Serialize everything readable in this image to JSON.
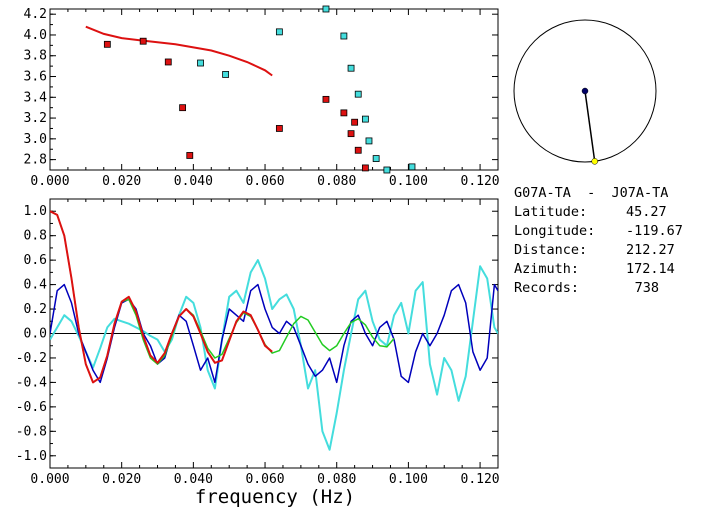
{
  "info": {
    "title": "G07A-TA  -  J07A-TA",
    "rows": [
      {
        "label": "Latitude:",
        "value": "45.27"
      },
      {
        "label": "Longitude:",
        "value": "-119.67"
      },
      {
        "label": "Distance:",
        "value": "212.27"
      },
      {
        "label": "Azimuth:",
        "value": "172.14"
      },
      {
        "label": "Records:",
        "value": "738"
      }
    ]
  },
  "colors": {
    "red": "#dd1111",
    "cyan": "#44dddd",
    "blue": "#0000bb",
    "green": "#22cc22",
    "yellow": "#ffff00",
    "navy": "#000066"
  },
  "compass": {
    "azimuth": 172.14
  },
  "chart_data": [
    {
      "type": "scatter",
      "xlim": [
        0.0,
        0.125
      ],
      "ylim": [
        2.7,
        4.25
      ],
      "xticks": [
        "0.000",
        "0.020",
        "0.040",
        "0.060",
        "0.080",
        "0.100",
        "0.120"
      ],
      "yticks": [
        "2.8",
        "3.0",
        "3.2",
        "3.4",
        "3.6",
        "3.8",
        "4.0",
        "4.2"
      ],
      "red_points": [
        [
          0.016,
          3.91
        ],
        [
          0.026,
          3.94
        ],
        [
          0.033,
          3.74
        ],
        [
          0.037,
          3.3
        ],
        [
          0.039,
          2.84
        ],
        [
          0.064,
          3.1
        ],
        [
          0.077,
          3.38
        ],
        [
          0.082,
          3.25
        ],
        [
          0.084,
          3.05
        ],
        [
          0.085,
          3.16
        ],
        [
          0.086,
          2.89
        ],
        [
          0.088,
          2.72
        ]
      ],
      "cyan_points": [
        [
          0.042,
          3.73
        ],
        [
          0.049,
          3.62
        ],
        [
          0.064,
          4.03
        ],
        [
          0.077,
          4.25
        ],
        [
          0.082,
          3.99
        ],
        [
          0.084,
          3.68
        ],
        [
          0.086,
          3.43
        ],
        [
          0.088,
          3.19
        ],
        [
          0.089,
          2.98
        ],
        [
          0.091,
          2.81
        ],
        [
          0.094,
          2.7
        ],
        [
          0.101,
          2.73
        ]
      ],
      "red_curve": [
        [
          0.01,
          4.08
        ],
        [
          0.015,
          4.01
        ],
        [
          0.02,
          3.97
        ],
        [
          0.025,
          3.95
        ],
        [
          0.03,
          3.93
        ],
        [
          0.035,
          3.91
        ],
        [
          0.04,
          3.88
        ],
        [
          0.045,
          3.85
        ],
        [
          0.05,
          3.8
        ],
        [
          0.055,
          3.74
        ],
        [
          0.06,
          3.66
        ],
        [
          0.062,
          3.61
        ]
      ]
    },
    {
      "type": "line",
      "xlim": [
        0.0,
        0.125
      ],
      "ylim": [
        -1.1,
        1.1
      ],
      "xlabel": "frequency (Hz)",
      "xticks": [
        "0.000",
        "0.020",
        "0.040",
        "0.060",
        "0.080",
        "0.100",
        "0.120"
      ],
      "yticks": [
        "1.0",
        "0.8",
        "0.6",
        "0.4",
        "0.2",
        "0.0",
        "-0.2",
        "-0.4",
        "-0.6",
        "-0.8",
        "-1.0"
      ],
      "series": [
        {
          "color": "cyan",
          "points": [
            [
              0.0,
              -0.05
            ],
            [
              0.002,
              0.05
            ],
            [
              0.004,
              0.15
            ],
            [
              0.006,
              0.1
            ],
            [
              0.008,
              -0.02
            ],
            [
              0.01,
              -0.15
            ],
            [
              0.012,
              -0.28
            ],
            [
              0.014,
              -0.12
            ],
            [
              0.016,
              0.05
            ],
            [
              0.018,
              0.12
            ],
            [
              0.02,
              0.1
            ],
            [
              0.022,
              0.08
            ],
            [
              0.024,
              0.05
            ],
            [
              0.026,
              0.02
            ],
            [
              0.028,
              -0.02
            ],
            [
              0.03,
              -0.05
            ],
            [
              0.032,
              -0.15
            ],
            [
              0.034,
              -0.05
            ],
            [
              0.036,
              0.15
            ],
            [
              0.038,
              0.3
            ],
            [
              0.04,
              0.25
            ],
            [
              0.042,
              0.05
            ],
            [
              0.044,
              -0.3
            ],
            [
              0.046,
              -0.45
            ],
            [
              0.048,
              -0.05
            ],
            [
              0.05,
              0.3
            ],
            [
              0.052,
              0.35
            ],
            [
              0.054,
              0.25
            ],
            [
              0.056,
              0.5
            ],
            [
              0.058,
              0.6
            ],
            [
              0.06,
              0.45
            ],
            [
              0.062,
              0.2
            ],
            [
              0.064,
              0.28
            ],
            [
              0.066,
              0.32
            ],
            [
              0.068,
              0.2
            ],
            [
              0.07,
              -0.1
            ],
            [
              0.072,
              -0.45
            ],
            [
              0.074,
              -0.3
            ],
            [
              0.076,
              -0.8
            ],
            [
              0.078,
              -0.95
            ],
            [
              0.08,
              -0.65
            ],
            [
              0.082,
              -0.3
            ],
            [
              0.084,
              0.0
            ],
            [
              0.086,
              0.28
            ],
            [
              0.088,
              0.35
            ],
            [
              0.09,
              0.1
            ],
            [
              0.092,
              -0.05
            ],
            [
              0.094,
              -0.1
            ],
            [
              0.096,
              0.15
            ],
            [
              0.098,
              0.25
            ],
            [
              0.1,
              0.0
            ],
            [
              0.102,
              0.35
            ],
            [
              0.104,
              0.42
            ],
            [
              0.106,
              -0.25
            ],
            [
              0.108,
              -0.5
            ],
            [
              0.11,
              -0.2
            ],
            [
              0.112,
              -0.3
            ],
            [
              0.114,
              -0.55
            ],
            [
              0.116,
              -0.35
            ],
            [
              0.118,
              0.1
            ],
            [
              0.12,
              0.55
            ],
            [
              0.122,
              0.45
            ],
            [
              0.124,
              0.05
            ],
            [
              0.125,
              0.0
            ]
          ]
        },
        {
          "color": "blue",
          "points": [
            [
              0.0,
              0.0
            ],
            [
              0.002,
              0.35
            ],
            [
              0.004,
              0.4
            ],
            [
              0.006,
              0.25
            ],
            [
              0.008,
              0.0
            ],
            [
              0.01,
              -0.15
            ],
            [
              0.012,
              -0.3
            ],
            [
              0.014,
              -0.4
            ],
            [
              0.016,
              -0.2
            ],
            [
              0.018,
              0.05
            ],
            [
              0.02,
              0.25
            ],
            [
              0.022,
              0.28
            ],
            [
              0.024,
              0.2
            ],
            [
              0.026,
              0.0
            ],
            [
              0.028,
              -0.1
            ],
            [
              0.03,
              -0.25
            ],
            [
              0.032,
              -0.2
            ],
            [
              0.034,
              0.0
            ],
            [
              0.036,
              0.15
            ],
            [
              0.038,
              0.1
            ],
            [
              0.04,
              -0.1
            ],
            [
              0.042,
              -0.3
            ],
            [
              0.044,
              -0.2
            ],
            [
              0.046,
              -0.4
            ],
            [
              0.048,
              -0.05
            ],
            [
              0.05,
              0.2
            ],
            [
              0.052,
              0.15
            ],
            [
              0.054,
              0.1
            ],
            [
              0.056,
              0.35
            ],
            [
              0.058,
              0.4
            ],
            [
              0.06,
              0.2
            ],
            [
              0.062,
              0.05
            ],
            [
              0.064,
              0.0
            ],
            [
              0.066,
              0.1
            ],
            [
              0.068,
              0.05
            ],
            [
              0.07,
              -0.1
            ],
            [
              0.072,
              -0.25
            ],
            [
              0.074,
              -0.35
            ],
            [
              0.076,
              -0.3
            ],
            [
              0.078,
              -0.2
            ],
            [
              0.08,
              -0.4
            ],
            [
              0.082,
              -0.1
            ],
            [
              0.084,
              0.1
            ],
            [
              0.086,
              0.15
            ],
            [
              0.088,
              0.0
            ],
            [
              0.09,
              -0.1
            ],
            [
              0.092,
              0.05
            ],
            [
              0.094,
              0.1
            ],
            [
              0.096,
              -0.05
            ],
            [
              0.098,
              -0.35
            ],
            [
              0.1,
              -0.4
            ],
            [
              0.102,
              -0.15
            ],
            [
              0.104,
              0.0
            ],
            [
              0.106,
              -0.1
            ],
            [
              0.108,
              0.0
            ],
            [
              0.11,
              0.15
            ],
            [
              0.112,
              0.35
            ],
            [
              0.114,
              0.4
            ],
            [
              0.116,
              0.25
            ],
            [
              0.118,
              -0.15
            ],
            [
              0.12,
              -0.3
            ],
            [
              0.122,
              -0.2
            ],
            [
              0.124,
              0.4
            ],
            [
              0.125,
              0.35
            ]
          ]
        },
        {
          "color": "green",
          "points": [
            [
              0.0,
              1.0
            ],
            [
              0.002,
              0.97
            ],
            [
              0.004,
              0.8
            ],
            [
              0.006,
              0.45
            ],
            [
              0.008,
              0.05
            ],
            [
              0.01,
              -0.25
            ],
            [
              0.012,
              -0.4
            ],
            [
              0.014,
              -0.36
            ],
            [
              0.016,
              -0.18
            ],
            [
              0.018,
              0.08
            ],
            [
              0.02,
              0.26
            ],
            [
              0.022,
              0.28
            ],
            [
              0.024,
              0.15
            ],
            [
              0.026,
              -0.05
            ],
            [
              0.028,
              -0.2
            ],
            [
              0.03,
              -0.25
            ],
            [
              0.032,
              -0.18
            ],
            [
              0.034,
              -0.02
            ],
            [
              0.036,
              0.14
            ],
            [
              0.038,
              0.2
            ],
            [
              0.04,
              0.15
            ],
            [
              0.042,
              0.02
            ],
            [
              0.044,
              -0.12
            ],
            [
              0.046,
              -0.2
            ],
            [
              0.048,
              -0.17
            ],
            [
              0.05,
              -0.04
            ],
            [
              0.052,
              0.09
            ],
            [
              0.054,
              0.17
            ],
            [
              0.056,
              0.14
            ],
            [
              0.058,
              0.03
            ],
            [
              0.06,
              -0.09
            ],
            [
              0.062,
              -0.16
            ],
            [
              0.064,
              -0.14
            ],
            [
              0.066,
              -0.03
            ],
            [
              0.068,
              0.08
            ],
            [
              0.07,
              0.14
            ],
            [
              0.072,
              0.11
            ],
            [
              0.074,
              0.01
            ],
            [
              0.076,
              -0.09
            ],
            [
              0.078,
              -0.14
            ],
            [
              0.08,
              -0.1
            ],
            [
              0.082,
              0.0
            ],
            [
              0.084,
              0.09
            ],
            [
              0.086,
              0.12
            ],
            [
              0.088,
              0.07
            ],
            [
              0.09,
              -0.03
            ],
            [
              0.092,
              -0.1
            ],
            [
              0.094,
              -0.11
            ],
            [
              0.096,
              -0.04
            ]
          ]
        },
        {
          "color": "red",
          "points": [
            [
              0.0,
              1.0
            ],
            [
              0.002,
              0.97
            ],
            [
              0.004,
              0.8
            ],
            [
              0.006,
              0.45
            ],
            [
              0.008,
              0.05
            ],
            [
              0.01,
              -0.25
            ],
            [
              0.012,
              -0.4
            ],
            [
              0.014,
              -0.36
            ],
            [
              0.016,
              -0.18
            ],
            [
              0.018,
              0.08
            ],
            [
              0.02,
              0.26
            ],
            [
              0.022,
              0.3
            ],
            [
              0.024,
              0.18
            ],
            [
              0.026,
              -0.02
            ],
            [
              0.028,
              -0.18
            ],
            [
              0.03,
              -0.24
            ],
            [
              0.032,
              -0.16
            ],
            [
              0.034,
              0.0
            ],
            [
              0.036,
              0.14
            ],
            [
              0.038,
              0.2
            ],
            [
              0.04,
              0.14
            ],
            [
              0.042,
              0.0
            ],
            [
              0.044,
              -0.15
            ],
            [
              0.046,
              -0.24
            ],
            [
              0.048,
              -0.22
            ],
            [
              0.05,
              -0.06
            ],
            [
              0.052,
              0.1
            ],
            [
              0.054,
              0.18
            ],
            [
              0.056,
              0.15
            ],
            [
              0.058,
              0.03
            ],
            [
              0.06,
              -0.1
            ],
            [
              0.062,
              -0.15
            ]
          ]
        }
      ]
    }
  ]
}
